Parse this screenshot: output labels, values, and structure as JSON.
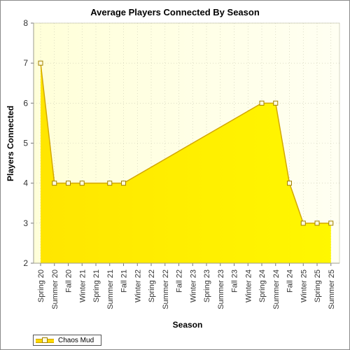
{
  "chart_data": {
    "type": "area",
    "title": "Average Players Connected By Season",
    "xlabel": "Season",
    "ylabel": "Players Connected",
    "categories": [
      "Spring 20",
      "Summer 20",
      "Fall 20",
      "Winter 21",
      "Spring 21",
      "Summer 21",
      "Fall 21",
      "Winter 22",
      "Spring 22",
      "Summer 22",
      "Fall 22",
      "Winter 23",
      "Spring 23",
      "Summer 23",
      "Fall 23",
      "Winter 24",
      "Spring 24",
      "Summer 24",
      "Fall 24",
      "Winter 25",
      "Spring 25",
      "Summer 25"
    ],
    "series": [
      {
        "name": "Chaos Mud",
        "points": [
          {
            "x": "Spring 20",
            "y": 7
          },
          {
            "x": "Summer 20",
            "y": 4
          },
          {
            "x": "Fall 20",
            "y": 4
          },
          {
            "x": "Winter 21",
            "y": 4
          },
          {
            "x": "Summer 21",
            "y": 4
          },
          {
            "x": "Fall 21",
            "y": 4
          },
          {
            "x": "Spring 24",
            "y": 6
          },
          {
            "x": "Summer 24",
            "y": 6
          },
          {
            "x": "Fall 24",
            "y": 4
          },
          {
            "x": "Winter 25",
            "y": 3
          },
          {
            "x": "Spring 25",
            "y": 3
          },
          {
            "x": "Summer 25",
            "y": 3
          }
        ]
      }
    ],
    "ylim": [
      2,
      8
    ],
    "yticks": [
      2,
      3,
      4,
      5,
      6,
      7,
      8
    ],
    "grid": true,
    "legend_position": "bottom-left"
  },
  "colors": {
    "fill_top": "#ffe600",
    "fill_bottom": "#fff700",
    "line": "#d4a800",
    "marker_fill": "#fffbe0",
    "marker_stroke": "#a08000",
    "plot_bg_left": "#ffffd9",
    "plot_bg_right": "#fffff2"
  }
}
